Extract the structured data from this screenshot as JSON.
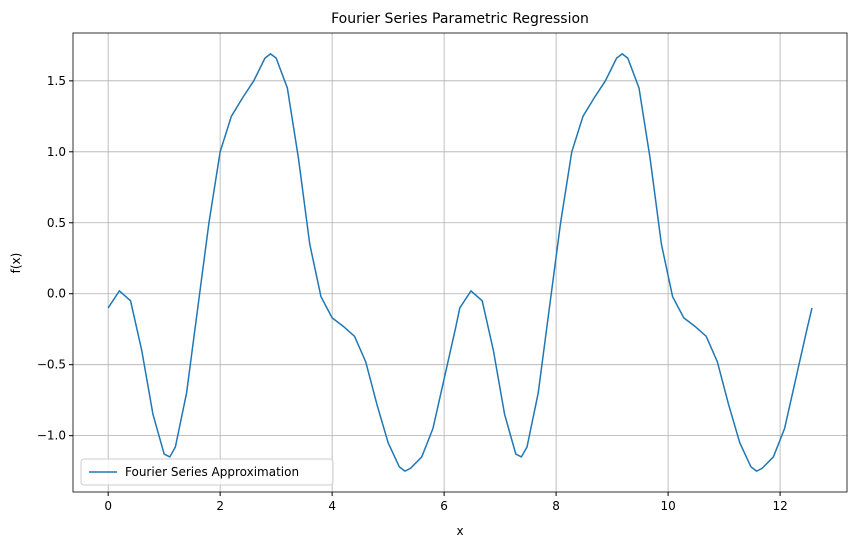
{
  "chart_data": {
    "type": "line",
    "title": "Fourier Series Parametric Regression",
    "x_label": "x",
    "y_label": "f(x)",
    "x": [
      0,
      0.2,
      0.4,
      0.6,
      0.8,
      1.0,
      1.1,
      1.2,
      1.4,
      1.6,
      1.8,
      2.0,
      2.2,
      2.4,
      2.6,
      2.8,
      2.9,
      3.0,
      3.2,
      3.4,
      3.6,
      3.8,
      4.0,
      4.2,
      4.4,
      4.6,
      4.8,
      5.0,
      5.2,
      5.3,
      5.4,
      5.6,
      5.8,
      6.0,
      6.2,
      6.28,
      6.48,
      6.68,
      6.88,
      7.08,
      7.28,
      7.38,
      7.48,
      7.68,
      7.88,
      8.08,
      8.28,
      8.48,
      8.68,
      8.88,
      9.08,
      9.18,
      9.28,
      9.48,
      9.68,
      9.88,
      10.08,
      10.28,
      10.48,
      10.68,
      10.88,
      11.08,
      11.28,
      11.48,
      11.58,
      11.68,
      11.88,
      12.08,
      12.28,
      12.48,
      12.57
    ],
    "series": [
      {
        "name": "Fourier Series Approximation",
        "color": "#1f77b4",
        "values": [
          -0.1,
          0.02,
          -0.05,
          -0.4,
          -0.85,
          -1.13,
          -1.15,
          -1.08,
          -0.7,
          -0.1,
          0.5,
          1.0,
          1.25,
          1.38,
          1.5,
          1.66,
          1.69,
          1.66,
          1.45,
          0.95,
          0.35,
          -0.02,
          -0.17,
          -0.23,
          -0.3,
          -0.48,
          -0.78,
          -1.05,
          -1.22,
          -1.25,
          -1.23,
          -1.15,
          -0.95,
          -0.6,
          -0.25,
          -0.1,
          0.02,
          -0.05,
          -0.4,
          -0.85,
          -1.13,
          -1.15,
          -1.08,
          -0.7,
          -0.1,
          0.5,
          1.0,
          1.25,
          1.38,
          1.5,
          1.66,
          1.69,
          1.66,
          1.45,
          0.95,
          0.35,
          -0.02,
          -0.17,
          -0.23,
          -0.3,
          -0.48,
          -0.78,
          -1.05,
          -1.22,
          -1.25,
          -1.23,
          -1.15,
          -0.95,
          -0.6,
          -0.25,
          -0.1
        ]
      }
    ],
    "xlim": [
      -0.628,
      13.195
    ],
    "ylim": [
      -1.397,
      1.837
    ],
    "xticks": [
      0,
      2,
      4,
      6,
      8,
      10,
      12
    ],
    "yticks": [
      {
        "value": -1.0,
        "label": "−1.0"
      },
      {
        "value": -0.5,
        "label": "−0.5"
      },
      {
        "value": 0.0,
        "label": "0.0"
      },
      {
        "value": 0.5,
        "label": "0.5"
      },
      {
        "value": 1.0,
        "label": "1.0"
      },
      {
        "value": 1.5,
        "label": "1.5"
      }
    ],
    "grid": true,
    "legend": "lower left"
  }
}
